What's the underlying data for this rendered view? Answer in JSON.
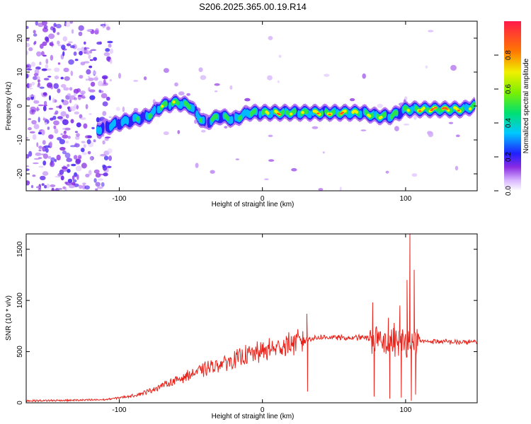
{
  "chart_data": [
    {
      "type": "heatmap",
      "title": "S206.2025.365.00.19.R14",
      "xlabel": "Height of straight line (km)",
      "ylabel": "Frequency (Hz)",
      "xlim": [
        -165,
        150
      ],
      "ylim": [
        -25,
        25
      ],
      "x_ticks": [
        -100,
        0,
        100
      ],
      "y_ticks": [
        -20,
        -10,
        0,
        10,
        20
      ],
      "ridge": {
        "x": [
          -115,
          -100,
          -90,
          -80,
          -70,
          -60,
          -50,
          -45,
          -40,
          -35,
          -30,
          -20,
          -10,
          0,
          10,
          20,
          30,
          40,
          50,
          60,
          70,
          80,
          90,
          100,
          110,
          120,
          130,
          140,
          148
        ],
        "freq": [
          -7,
          -5,
          -4,
          -3,
          0,
          1,
          0,
          -3,
          -5,
          -4,
          -3,
          -4,
          -2,
          -2,
          -2,
          -2,
          -2,
          -2,
          -2,
          -2,
          -2,
          -3,
          -3,
          -1,
          -1,
          -1,
          -1,
          -1,
          0
        ],
        "amplitude": [
          0.3,
          0.35,
          0.45,
          0.4,
          0.6,
          0.6,
          0.5,
          0.45,
          0.3,
          0.5,
          0.45,
          0.5,
          0.55,
          0.55,
          0.85,
          0.6,
          0.6,
          0.8,
          0.7,
          0.85,
          0.6,
          0.7,
          0.55,
          0.5,
          0.9,
          0.9,
          0.95,
          0.7,
          0.5
        ]
      },
      "colorbar": {
        "label": "Normalized spectral amplitude",
        "ticks": [
          "0.0",
          "0.2",
          "0.4",
          "0.6",
          "0.8"
        ],
        "range": [
          0,
          1
        ]
      }
    },
    {
      "type": "line",
      "xlabel": "Height of straight line (km)",
      "ylabel": "SNR (10 * v/v)",
      "xlim": [
        -165,
        150
      ],
      "ylim": [
        0,
        1650
      ],
      "x_ticks": [
        -100,
        0,
        100
      ],
      "y_ticks": [
        0,
        500,
        1000,
        1500
      ],
      "series": [
        {
          "name": "SNR",
          "color": "#e8241c",
          "x": [
            -165,
            -150,
            -130,
            -110,
            -90,
            -80,
            -70,
            -60,
            -50,
            -40,
            -30,
            -20,
            -10,
            0,
            10,
            20,
            30,
            40,
            50,
            60,
            70,
            80,
            90,
            100,
            110,
            120,
            130,
            140,
            150
          ],
          "y": [
            20,
            22,
            25,
            30,
            70,
            110,
            170,
            220,
            280,
            330,
            380,
            420,
            470,
            500,
            540,
            580,
            620,
            640,
            640,
            630,
            640,
            610,
            600,
            590,
            600,
            600,
            595,
            590,
            595
          ]
        }
      ],
      "spikes": [
        {
          "x": 31,
          "y": 870
        },
        {
          "x": 31.5,
          "y": 110
        },
        {
          "x": 77,
          "y": 980
        },
        {
          "x": 78,
          "y": 60
        },
        {
          "x": 80,
          "y": 580
        },
        {
          "x": 88,
          "y": 830
        },
        {
          "x": 89,
          "y": 40
        },
        {
          "x": 92,
          "y": 780
        },
        {
          "x": 96,
          "y": 950
        },
        {
          "x": 97,
          "y": 50
        },
        {
          "x": 101,
          "y": 1200
        },
        {
          "x": 103,
          "y": 1650
        },
        {
          "x": 104,
          "y": 20
        },
        {
          "x": 106,
          "y": 1300
        },
        {
          "x": 107,
          "y": 80
        }
      ]
    }
  ]
}
